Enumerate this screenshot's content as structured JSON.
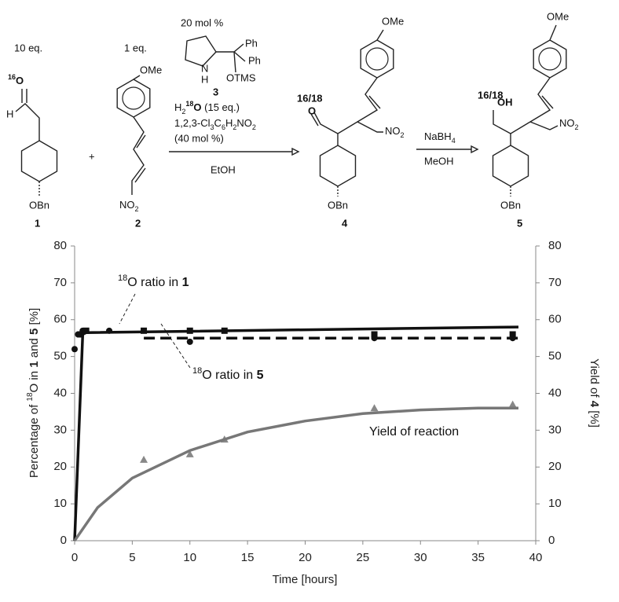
{
  "scheme": {
    "cmpd1": {
      "eq": "10 eq.",
      "iso": "16",
      "atom": "O",
      "h": "H",
      "obn": "OBn",
      "label": "1"
    },
    "plus": "+",
    "cmpd2": {
      "eq": "1 eq.",
      "ome": "OMe",
      "no2": [
        "NO",
        "2"
      ],
      "label": "2"
    },
    "catalyst": {
      "loading": "20 mol %",
      "n": "N",
      "h": "H",
      "ph1": "Ph",
      "ph2": "Ph",
      "otms": "OTMS",
      "label": "3"
    },
    "conditions": {
      "water": [
        "H",
        "2",
        "18",
        "O",
        " (15 eq.)"
      ],
      "additive": [
        "1,2,3-Cl",
        "3",
        "C",
        "6",
        "H",
        "2",
        "NO",
        "2"
      ],
      "additive_amount": "(40 mol %)",
      "solvent": "EtOH"
    },
    "cmpd4": {
      "ome": "OMe",
      "iso": "16/18",
      "atom": "O",
      "no2": [
        "NO",
        "2"
      ],
      "obn": "OBn",
      "label": "4"
    },
    "reduction": {
      "reagent": [
        "NaBH",
        "4"
      ],
      "solvent": "MeOH"
    },
    "cmpd5": {
      "ome": "OMe",
      "iso": "16/18",
      "atom": "OH",
      "no2": [
        "NO",
        "2"
      ],
      "obn": "OBn",
      "label": "5"
    }
  },
  "chart_data": {
    "type": "line",
    "xlabel": "Time [hours]",
    "ylabel_parts": [
      "Percentage of ",
      "18",
      "O in ",
      "1",
      " and ",
      "5",
      " [%]"
    ],
    "y2label_parts": [
      "Yield of ",
      "4",
      " [%]"
    ],
    "xlim": [
      0,
      40
    ],
    "xticks": [
      0,
      5,
      10,
      15,
      20,
      25,
      30,
      35,
      40
    ],
    "ylim": [
      0,
      80
    ],
    "yticks": [
      0,
      10,
      20,
      30,
      40,
      50,
      60,
      70,
      80
    ],
    "y2lim": [
      0,
      80
    ],
    "y2ticks": [
      0,
      10,
      20,
      30,
      40,
      50,
      60,
      70,
      80
    ],
    "grid": false,
    "series": [
      {
        "color": "#111111",
        "marker": "circle",
        "line": "none",
        "x": [
          0,
          0.3,
          0.7,
          3,
          10,
          26,
          38
        ],
        "values": [
          52,
          56,
          57,
          57,
          54,
          55,
          55
        ]
      },
      {
        "color": "#111111",
        "marker": "square",
        "line": "none",
        "x": [
          0.5,
          1,
          6,
          10,
          13,
          26,
          38
        ],
        "values": [
          56,
          57,
          57,
          57,
          57,
          56,
          56
        ]
      },
      {
        "color": "#111111",
        "marker": "none",
        "line": "solid",
        "x": [
          0,
          0.7,
          1,
          38.5
        ],
        "values": [
          0,
          56,
          56.5,
          58
        ]
      },
      {
        "color": "#111111",
        "marker": "none",
        "line": "dashed",
        "x": [
          6,
          38.5
        ],
        "values": [
          55,
          55
        ]
      },
      {
        "color": "#888888",
        "marker": "triangle",
        "line": "none",
        "axis": "y2",
        "x": [
          6,
          10,
          13,
          26,
          38
        ],
        "values": [
          22,
          23.5,
          27.5,
          36,
          37
        ]
      },
      {
        "color": "#777777",
        "marker": "none",
        "line": "solid",
        "axis": "y2",
        "x": [
          0,
          2,
          5,
          10,
          15,
          20,
          25,
          30,
          35,
          38.5
        ],
        "values": [
          0,
          9,
          17,
          24.5,
          29.5,
          32.5,
          34.5,
          35.5,
          36,
          36
        ]
      }
    ],
    "annotations": [
      {
        "parts": [
          "18",
          "O ratio in ",
          "1"
        ]
      },
      {
        "parts": [
          "18",
          "O ratio in ",
          "5"
        ]
      },
      {
        "text": "Yield of reaction"
      }
    ]
  }
}
